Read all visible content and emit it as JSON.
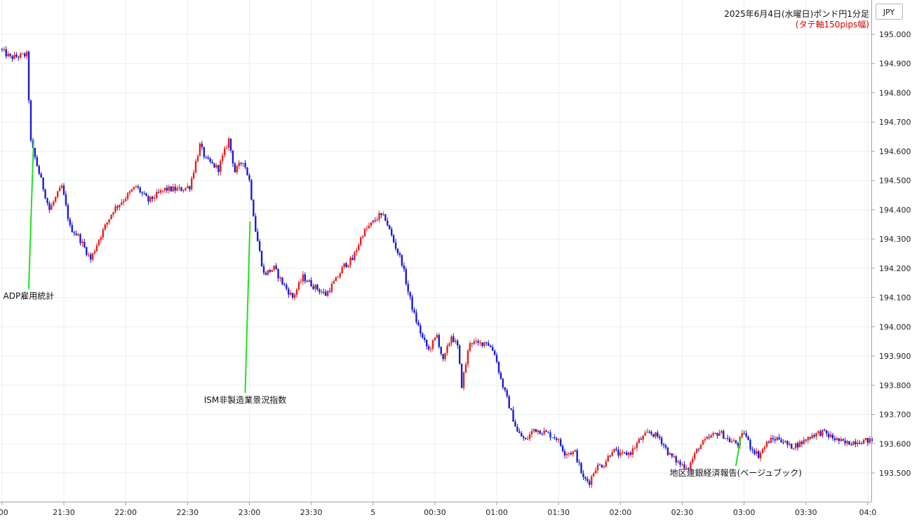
{
  "chart_data": {
    "type": "candlestick",
    "title": "2025年6月4日(水曜日)ポンド円1分足",
    "subtitle": "(タテ軸150pips幅)",
    "currency_label": "JPY",
    "y_ticks": [
      "195.000",
      "194.900",
      "194.800",
      "194.700",
      "194.600",
      "194.500",
      "194.400",
      "194.300",
      "194.200",
      "194.100",
      "194.000",
      "193.900",
      "193.800",
      "193.700",
      "193.600",
      "193.500"
    ],
    "x_ticks": [
      ":00",
      "21:30",
      "22:00",
      "22:30",
      "23:00",
      "23:30",
      "5",
      "00:30",
      "01:00",
      "01:30",
      "02:00",
      "02:30",
      "03:00",
      "03:30",
      "04:0"
    ],
    "ylim": [
      193.42,
      195.02
    ],
    "xlim_minutes": [
      0,
      422
    ],
    "price_path": [
      {
        "t": 0,
        "p": 194.95
      },
      {
        "t": 5,
        "p": 194.92
      },
      {
        "t": 13,
        "p": 194.93
      },
      {
        "t": 15,
        "p": 194.63
      },
      {
        "t": 20,
        "p": 194.5
      },
      {
        "t": 24,
        "p": 194.4
      },
      {
        "t": 30,
        "p": 194.48
      },
      {
        "t": 34,
        "p": 194.34
      },
      {
        "t": 38,
        "p": 194.31
      },
      {
        "t": 44,
        "p": 194.23
      },
      {
        "t": 48,
        "p": 194.3
      },
      {
        "t": 55,
        "p": 194.4
      },
      {
        "t": 62,
        "p": 194.45
      },
      {
        "t": 66,
        "p": 194.48
      },
      {
        "t": 72,
        "p": 194.43
      },
      {
        "t": 80,
        "p": 194.47
      },
      {
        "t": 88,
        "p": 194.47
      },
      {
        "t": 92,
        "p": 194.48
      },
      {
        "t": 97,
        "p": 194.62
      },
      {
        "t": 100,
        "p": 194.57
      },
      {
        "t": 106,
        "p": 194.54
      },
      {
        "t": 111,
        "p": 194.64
      },
      {
        "t": 114,
        "p": 194.53
      },
      {
        "t": 118,
        "p": 194.57
      },
      {
        "t": 121,
        "p": 194.5
      },
      {
        "t": 124,
        "p": 194.33
      },
      {
        "t": 128,
        "p": 194.18
      },
      {
        "t": 133,
        "p": 194.2
      },
      {
        "t": 137,
        "p": 194.15
      },
      {
        "t": 142,
        "p": 194.1
      },
      {
        "t": 147,
        "p": 194.17
      },
      {
        "t": 152,
        "p": 194.14
      },
      {
        "t": 158,
        "p": 194.11
      },
      {
        "t": 163,
        "p": 194.16
      },
      {
        "t": 167,
        "p": 194.21
      },
      {
        "t": 171,
        "p": 194.23
      },
      {
        "t": 176,
        "p": 194.32
      },
      {
        "t": 180,
        "p": 194.35
      },
      {
        "t": 184,
        "p": 194.38
      },
      {
        "t": 187,
        "p": 194.37
      },
      {
        "t": 191,
        "p": 194.29
      },
      {
        "t": 195,
        "p": 194.22
      },
      {
        "t": 198,
        "p": 194.12
      },
      {
        "t": 201,
        "p": 194.04
      },
      {
        "t": 205,
        "p": 193.96
      },
      {
        "t": 208,
        "p": 193.92
      },
      {
        "t": 212,
        "p": 193.97
      },
      {
        "t": 215,
        "p": 193.88
      },
      {
        "t": 219,
        "p": 193.97
      },
      {
        "t": 222,
        "p": 193.93
      },
      {
        "t": 224,
        "p": 193.8
      },
      {
        "t": 228,
        "p": 193.95
      },
      {
        "t": 232,
        "p": 193.94
      },
      {
        "t": 236,
        "p": 193.95
      },
      {
        "t": 240,
        "p": 193.91
      },
      {
        "t": 243,
        "p": 193.82
      },
      {
        "t": 247,
        "p": 193.73
      },
      {
        "t": 251,
        "p": 193.64
      },
      {
        "t": 255,
        "p": 193.61
      },
      {
        "t": 259,
        "p": 193.65
      },
      {
        "t": 264,
        "p": 193.64
      },
      {
        "t": 270,
        "p": 193.62
      },
      {
        "t": 274,
        "p": 193.57
      },
      {
        "t": 279,
        "p": 193.57
      },
      {
        "t": 283,
        "p": 193.48
      },
      {
        "t": 286,
        "p": 193.47
      },
      {
        "t": 289,
        "p": 193.52
      },
      {
        "t": 293,
        "p": 193.53
      },
      {
        "t": 297,
        "p": 193.58
      },
      {
        "t": 301,
        "p": 193.56
      },
      {
        "t": 306,
        "p": 193.57
      },
      {
        "t": 310,
        "p": 193.61
      },
      {
        "t": 315,
        "p": 193.64
      },
      {
        "t": 320,
        "p": 193.62
      },
      {
        "t": 325,
        "p": 193.56
      },
      {
        "t": 330,
        "p": 193.53
      },
      {
        "t": 334,
        "p": 193.52
      },
      {
        "t": 339,
        "p": 193.59
      },
      {
        "t": 344,
        "p": 193.62
      },
      {
        "t": 349,
        "p": 193.64
      },
      {
        "t": 354,
        "p": 193.61
      },
      {
        "t": 358,
        "p": 193.6
      },
      {
        "t": 361,
        "p": 193.64
      },
      {
        "t": 364,
        "p": 193.59
      },
      {
        "t": 368,
        "p": 193.56
      },
      {
        "t": 373,
        "p": 193.61
      },
      {
        "t": 378,
        "p": 193.62
      },
      {
        "t": 383,
        "p": 193.59
      },
      {
        "t": 388,
        "p": 193.6
      },
      {
        "t": 394,
        "p": 193.63
      },
      {
        "t": 399,
        "p": 193.64
      },
      {
        "t": 404,
        "p": 193.62
      },
      {
        "t": 410,
        "p": 193.6
      },
      {
        "t": 416,
        "p": 193.61
      },
      {
        "t": 422,
        "p": 193.61
      }
    ],
    "annotations": [
      {
        "label": "ADP雇用統計",
        "t": 15,
        "p": 194.64,
        "label_p": 194.095
      },
      {
        "label": "ISM非製造業景況指数",
        "t": 120,
        "p": 194.36,
        "label_p": 193.74
      },
      {
        "label": "地区連銀経済報告(ベージュブック)",
        "t": 358,
        "p": 193.62,
        "label_p": 193.49
      }
    ],
    "up_color": "#e8201c",
    "down_color": "#1a1ad6",
    "annotation_line_color": "#22e022",
    "subtitle_color": "#d40000",
    "grid": true
  }
}
